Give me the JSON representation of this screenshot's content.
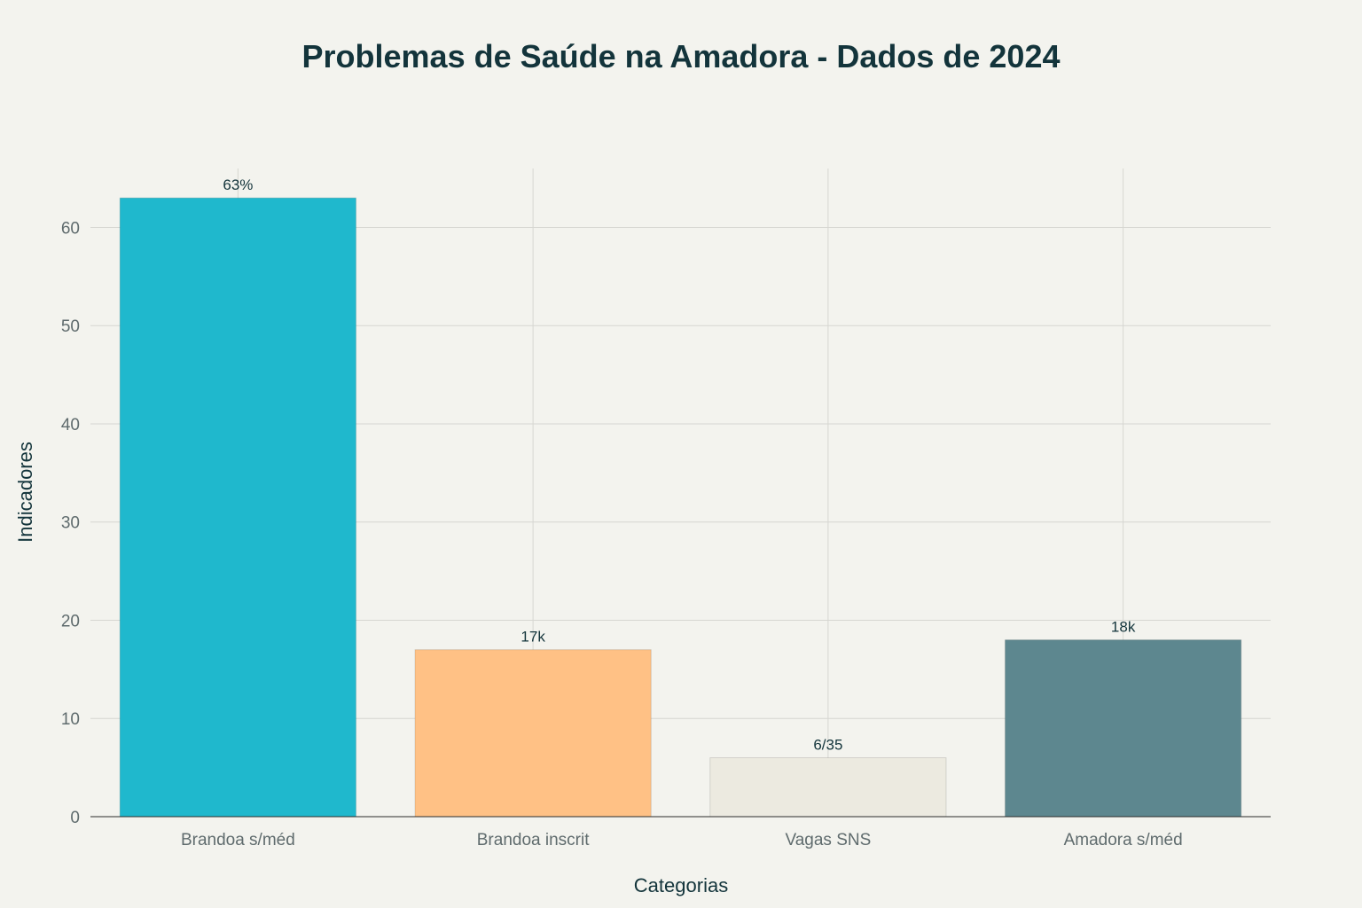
{
  "chart_data": {
    "type": "bar",
    "title": "Problemas de Saúde na Amadora - Dados de 2024",
    "xlabel": "Categorias",
    "ylabel": "Indicadores",
    "categories": [
      "Brandoa s/méd",
      "Brandoa inscrit",
      "Vagas SNS",
      "Amadora s/méd"
    ],
    "values": [
      63,
      17,
      6,
      18
    ],
    "data_labels": [
      "63%",
      "17k",
      "6/35",
      "18k"
    ],
    "colors": [
      "#1fb8cd",
      "#ffc185",
      "#eceae0",
      "#5d878f"
    ],
    "ylim": [
      0,
      66
    ],
    "yticks": [
      0,
      10,
      20,
      30,
      40,
      50,
      60
    ],
    "grid": true,
    "legend": "none"
  }
}
